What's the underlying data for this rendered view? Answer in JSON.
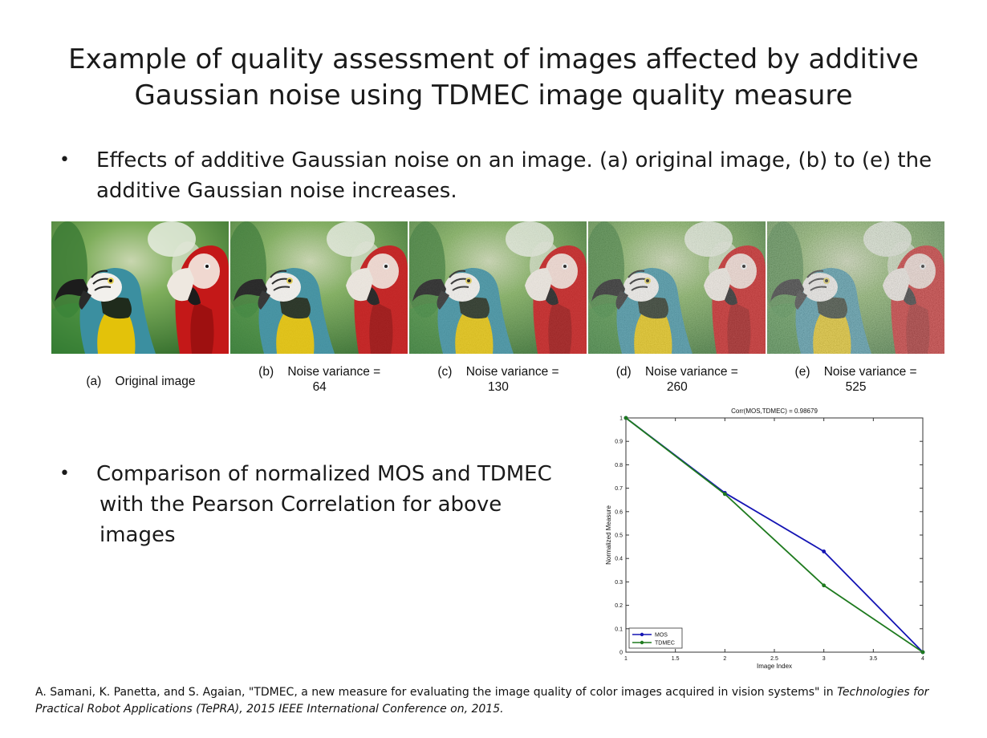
{
  "slide": {
    "title_line1": "Example of quality assessment of images affected by additive",
    "title_line2": "Gaussian noise using TDMEC image quality measure",
    "bullet1": "Effects of additive Gaussian noise on an image. (a) original image, (b) to (e) the additive Gaussian noise increases.",
    "bullet2_line1": "Comparison of normalized MOS and TDMEC",
    "bullet2_line2": "with the Pearson Correlation for above images",
    "bullet_glyph": "•"
  },
  "images": [
    {
      "label": "(a)",
      "caption": "Original image",
      "value": "",
      "noise": 0
    },
    {
      "label": "(b)",
      "caption": "Noise variance =",
      "value": "64",
      "noise": 0.1
    },
    {
      "label": "(c)",
      "caption": "Noise variance =",
      "value": "130",
      "noise": 0.18
    },
    {
      "label": "(d)",
      "caption": "Noise variance =",
      "value": "260",
      "noise": 0.28
    },
    {
      "label": "(e)",
      "caption": "Noise variance =",
      "value": "525",
      "noise": 0.4
    }
  ],
  "chart_data": {
    "type": "line",
    "title": "Corr(MOS,TDMEC) = 0.98679",
    "xlabel": "Image Index",
    "ylabel": "Normalized Measure",
    "xlim": [
      1,
      4
    ],
    "ylim": [
      0,
      1
    ],
    "xticks": [
      "1",
      "1.5",
      "2",
      "2.5",
      "3",
      "3.5",
      "4"
    ],
    "yticks": [
      "0",
      "0.1",
      "0.2",
      "0.3",
      "0.4",
      "0.5",
      "0.6",
      "0.7",
      "0.8",
      "0.9",
      "1"
    ],
    "legend_position": "bottom-left",
    "series": [
      {
        "name": "MOS",
        "color": "#1414b4",
        "x": [
          1,
          2,
          3,
          4
        ],
        "y": [
          1.0,
          0.68,
          0.43,
          0.0
        ]
      },
      {
        "name": "TDMEC",
        "color": "#1e7a1e",
        "x": [
          1,
          2,
          3,
          4
        ],
        "y": [
          1.0,
          0.675,
          0.285,
          0.0
        ]
      }
    ]
  },
  "reference": {
    "text": "A. Samani, K. Panetta, and S. Agaian, \"TDMEC, a new measure for evaluating the image quality of color images acquired in vision systems\" in ",
    "italic": "Technologies for Practical Robot Applications (TePRA), 2015 IEEE International Conference on, 2015."
  }
}
